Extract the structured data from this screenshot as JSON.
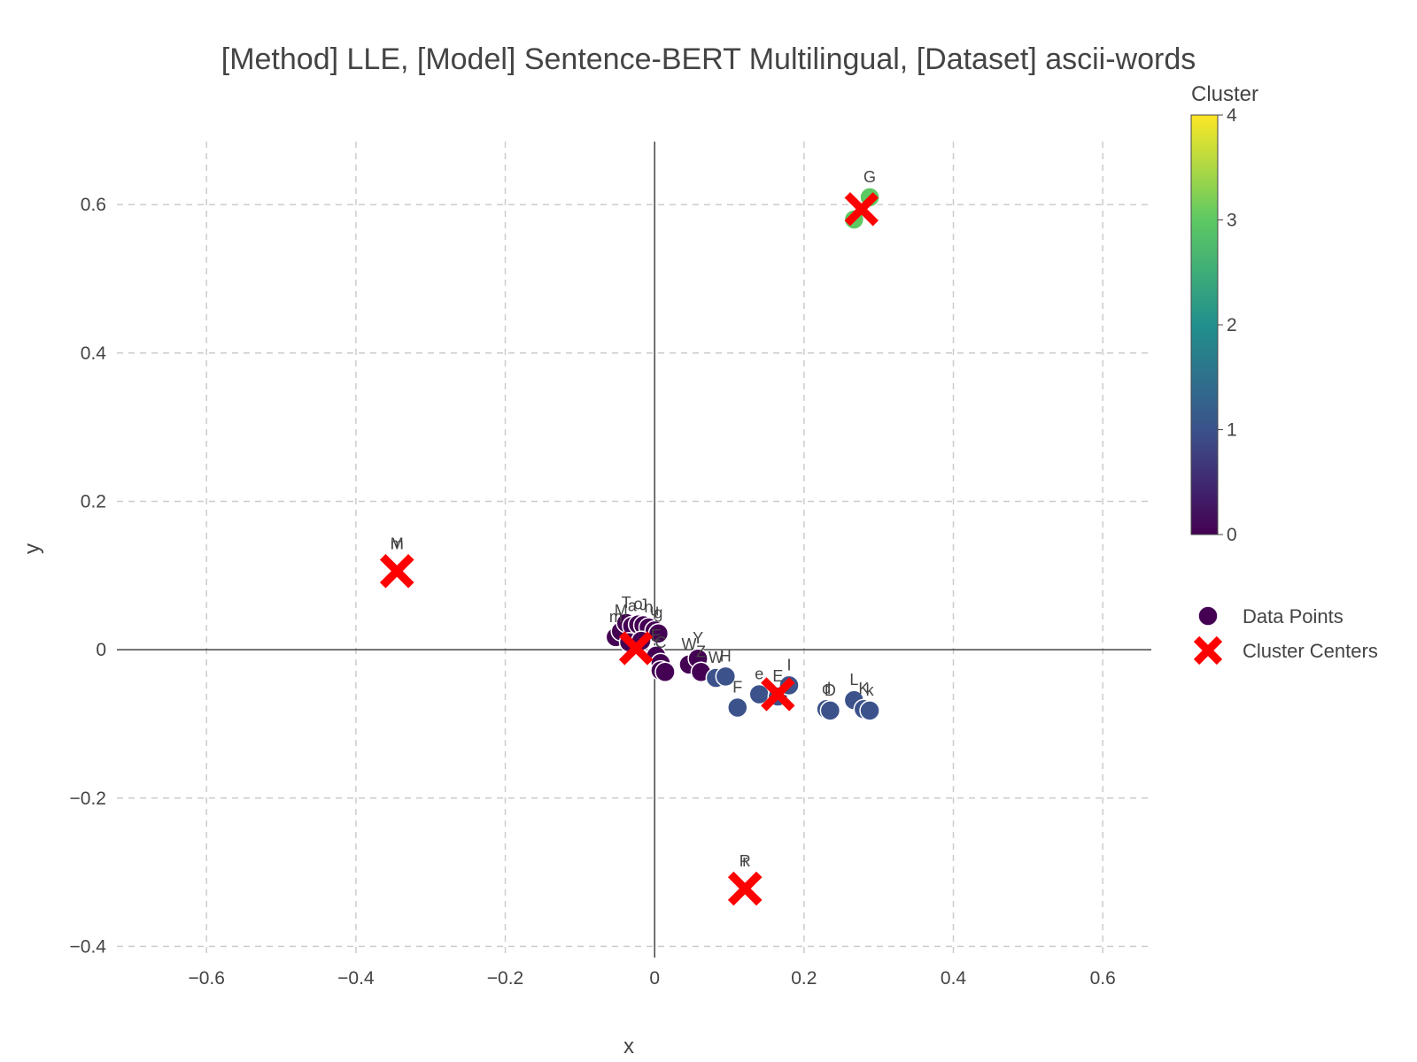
{
  "chart_data": {
    "type": "scatter",
    "title": "[Method] LLE, [Model] Sentence-BERT Multilingual, [Dataset] ascii-words",
    "xlabel": "x",
    "ylabel": "y",
    "xlim": [
      -0.72,
      0.665
    ],
    "ylim": [
      -0.415,
      0.685
    ],
    "xticks": [
      -0.6,
      -0.4,
      -0.2,
      0,
      0.2,
      0.4,
      0.6
    ],
    "xtick_labels": [
      "−0.6",
      "−0.4",
      "−0.2",
      "0",
      "0.2",
      "0.4",
      "0.6"
    ],
    "yticks": [
      -0.4,
      -0.2,
      0,
      0.2,
      0.4,
      0.6
    ],
    "ytick_labels": [
      "−0.4",
      "−0.2",
      "0",
      "0.2",
      "0.4",
      "0.6"
    ],
    "grid": true,
    "colorbar": {
      "title": "Cluster",
      "range": [
        0,
        4
      ],
      "ticks": [
        0,
        1,
        2,
        3,
        4
      ],
      "tick_labels": [
        "0",
        "1",
        "2",
        "3",
        "4"
      ],
      "colorscale": [
        "#440154",
        "#3b528b",
        "#21908d",
        "#5dc963",
        "#fde725"
      ]
    },
    "legend": {
      "placement": "right",
      "entries": [
        {
          "label": "Data Points",
          "color": "#440154",
          "marker": "circle"
        },
        {
          "label": "Cluster Centers",
          "color": "#ff0000",
          "marker": "x"
        }
      ]
    },
    "point_color_by_cluster": {
      "0": "#440154",
      "1": "#3b528b",
      "3": "#5dc963"
    },
    "series": [
      {
        "name": "Data Points",
        "points": [
          {
            "x": -0.052,
            "y": 0.017,
            "cluster": 0,
            "label": "m"
          },
          {
            "x": -0.045,
            "y": 0.025,
            "cluster": 0,
            "label": "M"
          },
          {
            "x": -0.038,
            "y": 0.036,
            "cluster": 0,
            "label": "T"
          },
          {
            "x": -0.03,
            "y": 0.032,
            "cluster": 0,
            "label": "a"
          },
          {
            "x": -0.022,
            "y": 0.034,
            "cluster": 0,
            "label": "o"
          },
          {
            "x": -0.015,
            "y": 0.033,
            "cluster": 0,
            "label": "J"
          },
          {
            "x": -0.008,
            "y": 0.03,
            "cluster": 0,
            "label": "n"
          },
          {
            "x": 0.0,
            "y": 0.026,
            "cluster": 0,
            "label": "u"
          },
          {
            "x": 0.005,
            "y": 0.022,
            "cluster": 0,
            "label": "g"
          },
          {
            "x": -0.034,
            "y": 0.01,
            "cluster": 0,
            "label": ""
          },
          {
            "x": -0.018,
            "y": 0.012,
            "cluster": 0,
            "label": ""
          },
          {
            "x": 0.002,
            "y": -0.008,
            "cluster": 0,
            "label": "E"
          },
          {
            "x": 0.008,
            "y": -0.018,
            "cluster": 0,
            "label": "C"
          },
          {
            "x": 0.008,
            "y": -0.028,
            "cluster": 0,
            "label": ""
          },
          {
            "x": 0.014,
            "y": -0.03,
            "cluster": 0,
            "label": ""
          },
          {
            "x": 0.046,
            "y": -0.02,
            "cluster": 0,
            "label": "W"
          },
          {
            "x": 0.058,
            "y": -0.012,
            "cluster": 0,
            "label": "Y"
          },
          {
            "x": 0.062,
            "y": -0.03,
            "cluster": 0,
            "label": "Z"
          },
          {
            "x": 0.082,
            "y": -0.038,
            "cluster": 1,
            "label": "W"
          },
          {
            "x": 0.095,
            "y": -0.036,
            "cluster": 1,
            "label": "H"
          },
          {
            "x": 0.111,
            "y": -0.078,
            "cluster": 1,
            "label": "F"
          },
          {
            "x": 0.14,
            "y": -0.06,
            "cluster": 1,
            "label": "e"
          },
          {
            "x": 0.165,
            "y": -0.063,
            "cluster": 1,
            "label": "E"
          },
          {
            "x": 0.18,
            "y": -0.048,
            "cluster": 1,
            "label": "I"
          },
          {
            "x": 0.23,
            "y": -0.08,
            "cluster": 1,
            "label": "d"
          },
          {
            "x": 0.235,
            "y": -0.082,
            "cluster": 1,
            "label": "D"
          },
          {
            "x": 0.267,
            "y": -0.068,
            "cluster": 1,
            "label": "L"
          },
          {
            "x": 0.28,
            "y": -0.08,
            "cluster": 1,
            "label": "K"
          },
          {
            "x": 0.288,
            "y": -0.082,
            "cluster": 1,
            "label": "k"
          },
          {
            "x": 0.288,
            "y": 0.61,
            "cluster": 3,
            "label": "G"
          },
          {
            "x": 0.267,
            "y": 0.58,
            "cluster": 3,
            "label": ""
          }
        ]
      },
      {
        "name": "Cluster Centers",
        "points": [
          {
            "x": -0.345,
            "y": 0.106,
            "label": "M"
          },
          {
            "x": -0.345,
            "y": 0.106,
            "label": "m"
          },
          {
            "x": -0.025,
            "y": 0.002,
            "label": ""
          },
          {
            "x": 0.165,
            "y": -0.06,
            "label": ""
          },
          {
            "x": 0.277,
            "y": 0.594,
            "label": ""
          },
          {
            "x": 0.121,
            "y": -0.322,
            "label": "r"
          },
          {
            "x": 0.121,
            "y": -0.322,
            "label": "R"
          }
        ]
      }
    ]
  }
}
